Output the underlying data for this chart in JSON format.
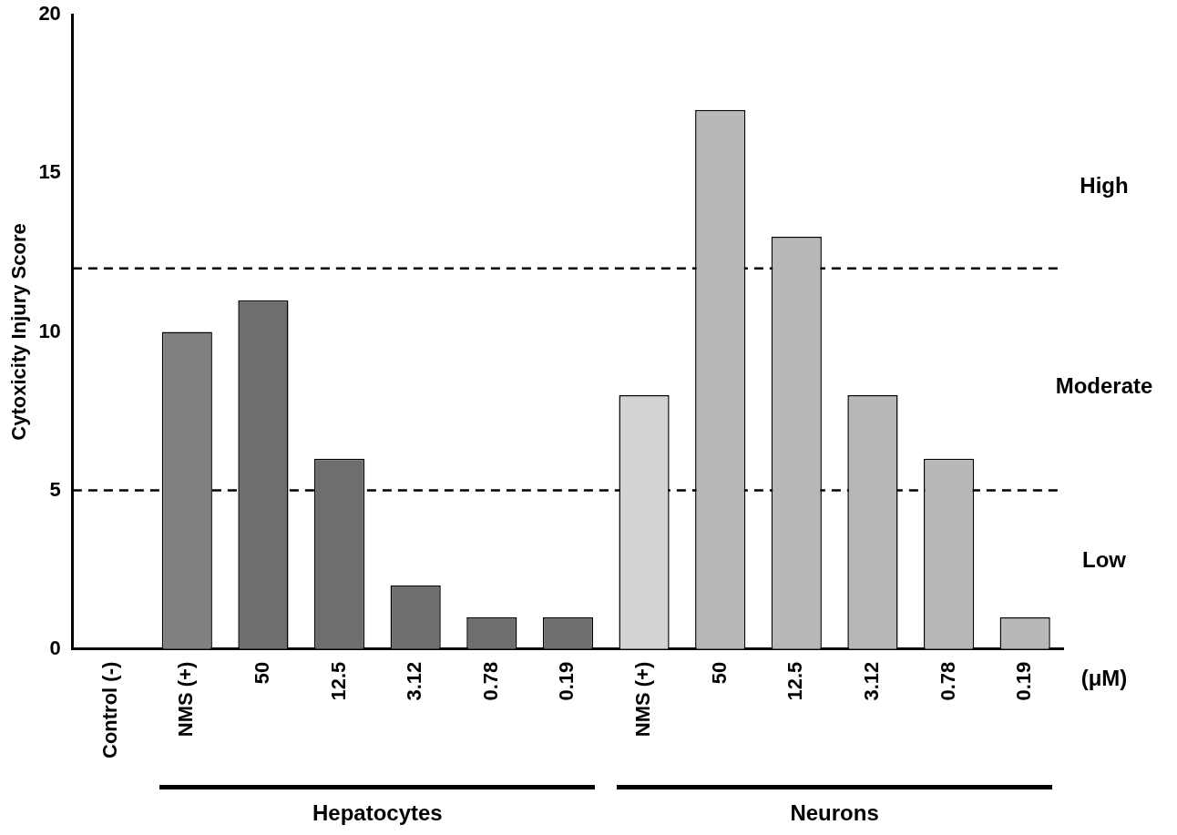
{
  "chart_data": {
    "type": "bar",
    "ylabel": "Cytoxicity Injury Score",
    "categories": [
      "Control (-)",
      "NMS (+)",
      "50",
      "12.5",
      "3.12",
      "0.78",
      "0.19",
      "NMS (+)",
      "50",
      "12.5",
      "3.12",
      "0.78",
      "0.19"
    ],
    "values": [
      0,
      10,
      11,
      6,
      2,
      1,
      1,
      8,
      17,
      13,
      8,
      6,
      1
    ],
    "colors": [
      "#808080",
      "#808080",
      "#6e6e6e",
      "#6e6e6e",
      "#6e6e6e",
      "#6e6e6e",
      "#6e6e6e",
      "#d3d3d3",
      "#b8b8b8",
      "#b8b8b8",
      "#b8b8b8",
      "#b8b8b8",
      "#b8b8b8"
    ],
    "ylim": [
      0,
      20
    ],
    "yticks": [
      0,
      5,
      10,
      15,
      20
    ],
    "grid": false,
    "legend": false,
    "ref_lines": [
      {
        "axis": "y",
        "value": 5,
        "line_style": "dashed",
        "color": "#000000"
      },
      {
        "axis": "y",
        "value": 12,
        "line_style": "dashed",
        "color": "#000000"
      }
    ],
    "annotations": [
      "High",
      "Moderate",
      "Low",
      "(μM)",
      "Hepatocytes",
      "Neurons"
    ]
  }
}
